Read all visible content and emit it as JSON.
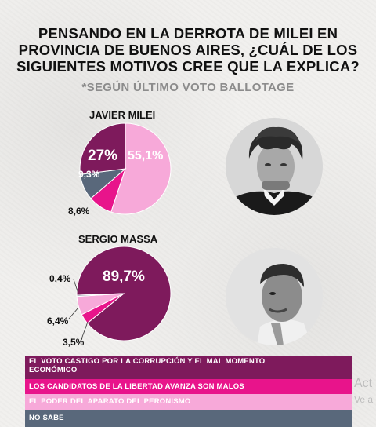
{
  "title_line1": "PENSANDO EN LA DERROTA DE MILEI EN",
  "title_line2": "PROVINCIA DE BUENOS AIRES, ¿CUÁL DE LOS",
  "title_line3": "SIGUIENTES MOTIVOS CREE QUE LA EXPLICA?",
  "subtitle": "*SEGÚN ÚLTIMO VOTO BALLOTAGE",
  "colors": {
    "corrupcion": "#7e1a5c",
    "candidatos": "#e8148b",
    "aparato": "#f7a9d9",
    "no_sabe": "#59687b"
  },
  "chart_data": [
    {
      "type": "pie",
      "title": "JAVIER MILEI",
      "slices": [
        {
          "label": "EL VOTO CASTIGO POR LA CORRUPCIÓN Y EL MAL MOMENTO ECONÓMICO",
          "value": 27,
          "display": "27%"
        },
        {
          "label": "EL PODER DEL APARATO DEL PERONISMO",
          "value": 55.1,
          "display": "55,1%"
        },
        {
          "label": "LOS CANDIDATOS DE LA LIBERTAD AVANZA SON MALOS",
          "value": 8.6,
          "display": "8,6%"
        },
        {
          "label": "NO SABE",
          "value": 9.3,
          "display": "9,3%"
        }
      ]
    },
    {
      "type": "pie",
      "title": "SERGIO MASSA",
      "slices": [
        {
          "label": "EL VOTO CASTIGO POR LA CORRUPCIÓN Y EL MAL MOMENTO ECONÓMICO",
          "value": 89.7,
          "display": "89,7%"
        },
        {
          "label": "LOS CANDIDATOS DE LA LIBERTAD AVANZA SON MALOS",
          "value": 3.5,
          "display": "3,5%"
        },
        {
          "label": "EL PODER DEL APARATO DEL PERONISMO",
          "value": 6.4,
          "display": "6,4%"
        },
        {
          "label": "NO SABE",
          "value": 0.4,
          "display": "0,4%"
        }
      ]
    }
  ],
  "legend": [
    {
      "line1": "EL VOTO CASTIGO POR LA CORRUPCIÓN Y EL MAL MOMENTO",
      "line2": "ECONÓMICO"
    },
    {
      "line1": "LOS CANDIDATOS DE LA LIBERTAD AVANZA SON MALOS"
    },
    {
      "line1": "EL PODER DEL APARATO DEL PERONISMO"
    },
    {
      "line1": "NO SABE"
    }
  ],
  "side_text_1": "Act",
  "side_text_2": "Ve a"
}
